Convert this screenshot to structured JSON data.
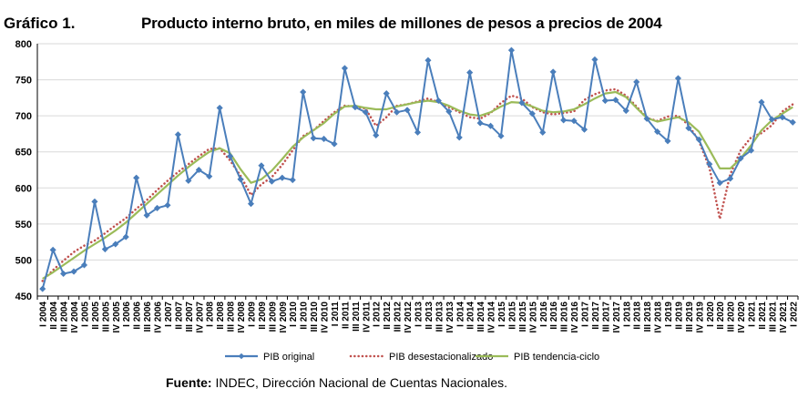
{
  "figure_label": "Gráfico 1.",
  "chart_data": {
    "type": "line",
    "title": "Producto interno bruto, en miles de millones de pesos a precios de 2004",
    "xlabel": "",
    "ylabel": "",
    "ylim": [
      450,
      800
    ],
    "yticks": [
      450,
      500,
      550,
      600,
      650,
      700,
      750,
      800
    ],
    "grid": true,
    "legend_position": "bottom",
    "categories": [
      "I 2004",
      "II 2004",
      "III 2004",
      "IV 2004",
      "I 2005",
      "II 2005",
      "III 2005",
      "IV 2005",
      "I 2006",
      "II 2006",
      "III 2006",
      "IV 2006",
      "I 2007",
      "II 2007",
      "III 2007",
      "IV 2007",
      "I 2008",
      "II 2008",
      "III 2008",
      "IV 2008",
      "I 2009",
      "II 2009",
      "III 2009",
      "IV 2009",
      "I 2010",
      "II 2010",
      "III 2010",
      "IV 2010",
      "I 2011",
      "II 2011",
      "III 2011",
      "IV 2011",
      "I 2012",
      "II 2012",
      "III 2012",
      "IV 2012",
      "I 2013",
      "II 2013",
      "III 2013",
      "IV 2013",
      "I 2014",
      "II 2014",
      "III 2014",
      "IV 2014",
      "I 2015",
      "II 2015",
      "III 2015",
      "IV 2015",
      "I 2016",
      "II 2016",
      "III 2016",
      "IV 2016",
      "I 2017",
      "II 2017",
      "III 2017",
      "IV 2017",
      "I 2018",
      "II 2018",
      "III 2018",
      "IV 2018",
      "I 2019",
      "II 2019",
      "III 2019",
      "IV 2019",
      "I 2020",
      "II 2020",
      "III 2020",
      "IV 2020",
      "I 2021",
      "II 2021",
      "III 2021",
      "IV 2021",
      "I 2022"
    ],
    "series": [
      {
        "name": "PIB original",
        "color": "#4a7ebb",
        "style": "solid-diamond",
        "values": [
          460,
          514,
          481,
          484,
          493,
          581,
          515,
          522,
          532,
          614,
          562,
          572,
          576,
          674,
          610,
          625,
          616,
          711,
          644,
          612,
          578,
          631,
          609,
          614,
          611,
          733,
          669,
          668,
          661,
          766,
          712,
          705,
          673,
          731,
          705,
          708,
          677,
          777,
          721,
          706,
          670,
          760,
          690,
          686,
          672,
          791,
          718,
          703,
          677,
          761,
          694,
          693,
          681,
          778,
          721,
          722,
          707,
          747,
          696,
          678,
          665,
          752,
          683,
          667,
          633,
          607,
          613,
          641,
          652,
          719,
          695,
          698,
          691
        ]
      },
      {
        "name": "PIB desestacionalizado",
        "color": "#c0504d",
        "style": "dotted",
        "values": [
          471,
          486,
          499,
          511,
          520,
          527,
          537,
          548,
          558,
          571,
          583,
          597,
          610,
          622,
          633,
          644,
          654,
          655,
          638,
          617,
          590,
          605,
          615,
          632,
          652,
          672,
          680,
          693,
          705,
          714,
          713,
          710,
          686,
          698,
          714,
          716,
          720,
          724,
          719,
          712,
          705,
          698,
          696,
          704,
          718,
          728,
          724,
          712,
          705,
          702,
          704,
          706,
          722,
          730,
          735,
          737,
          728,
          713,
          697,
          693,
          699,
          700,
          687,
          665,
          628,
          557,
          619,
          652,
          670,
          676,
          687,
          706,
          716
        ]
      },
      {
        "name": "PIB tendencia-ciclo",
        "color": "#9bbb59",
        "style": "solid",
        "values": [
          474,
          483,
          493,
          503,
          513,
          522,
          531,
          541,
          552,
          565,
          578,
          591,
          604,
          617,
          629,
          640,
          650,
          655,
          648,
          626,
          607,
          612,
          624,
          640,
          657,
          670,
          680,
          690,
          703,
          713,
          714,
          711,
          709,
          709,
          713,
          716,
          719,
          721,
          719,
          714,
          707,
          702,
          700,
          705,
          713,
          719,
          718,
          713,
          707,
          705,
          706,
          709,
          716,
          724,
          731,
          733,
          726,
          711,
          697,
          692,
          695,
          698,
          691,
          678,
          653,
          627,
          627,
          641,
          659,
          680,
          694,
          703,
          712
        ]
      }
    ]
  },
  "source": {
    "label": "Fuente:",
    "text": "INDEC, Dirección Nacional de Cuentas Nacionales."
  }
}
